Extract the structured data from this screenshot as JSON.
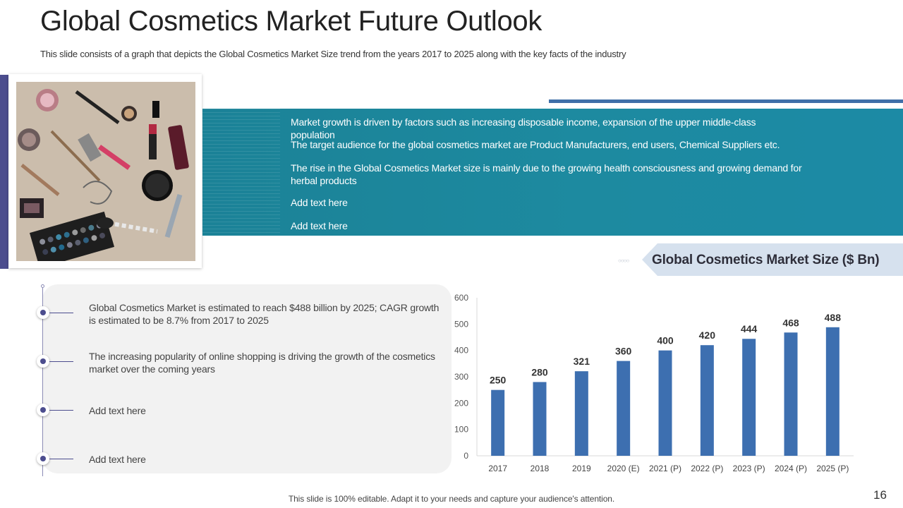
{
  "slide": {
    "title": "Global Cosmetics Market Future Outlook",
    "subtitle": "This slide consists of a graph that depicts the Global Cosmetics Market Size trend from the years 2017 to 2025 along with the key facts of the industry",
    "footer": "This slide is 100% editable. Adapt it to your needs and capture your audience's attention.",
    "page_number": "16"
  },
  "band": {
    "facts": [
      "Market growth is driven by factors such as increasing disposable income, expansion of the upper middle-class population",
      "The target audience for the global cosmetics market are Product Manufacturers, end users, Chemical Suppliers etc.",
      "The rise in the Global Cosmetics Market size is mainly due to the growing health consciousness and growing demand for herbal products",
      "Add text here",
      "Add text here"
    ]
  },
  "key_facts": [
    "Global Cosmetics Market is estimated to reach $488 billion by 2025; CAGR growth is estimated to be 8.7% from 2017 to 2025",
    "The increasing popularity of online shopping is driving the growth of the cosmetics market over the coming years",
    "Add text here",
    "Add text here"
  ],
  "colors": {
    "accent": "#4c4d8e",
    "teal": "#1d8aa0",
    "bar": "#3d6fb0",
    "label_bg": "#d6e1ee"
  },
  "chart_data": {
    "type": "bar",
    "title": "Global Cosmetics Market Size ($ Bn)",
    "categories": [
      "2017",
      "2018",
      "2019",
      "2020 (E)",
      "2021 (P)",
      "2022 (P)",
      "2023 (P)",
      "2024 (P)",
      "2025 (P)"
    ],
    "values": [
      250,
      280,
      321,
      360,
      400,
      420,
      444,
      468,
      488
    ],
    "ylim": [
      0,
      600
    ],
    "yticks": [
      0,
      100,
      200,
      300,
      400,
      500,
      600
    ],
    "xlabel": "",
    "ylabel": "",
    "grid": false,
    "legend": "none"
  }
}
